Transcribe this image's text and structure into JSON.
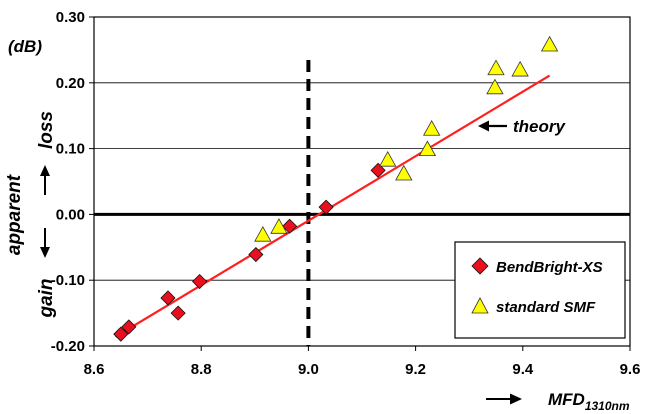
{
  "chart_data": {
    "type": "scatter",
    "unit_label": "(dB)",
    "xlabel": "MFD",
    "xlabel_subscript": "1310nm",
    "ylabel": {
      "center": "apparent",
      "upper": "loss",
      "lower": "gain"
    },
    "xlim": [
      8.6,
      9.6
    ],
    "ylim": [
      -0.2,
      0.3
    ],
    "x_ticks": [
      8.6,
      8.8,
      9.0,
      9.2,
      9.4,
      9.6
    ],
    "x_tick_labels": [
      "8.6",
      "8.8",
      "9.0",
      "9.2",
      "9.4",
      "9.6"
    ],
    "y_ticks": [
      -0.2,
      -0.1,
      0.0,
      0.1,
      0.2,
      0.3
    ],
    "y_tick_labels": [
      "-0.20",
      "-0.10",
      "0.00",
      "0.10",
      "0.20",
      "0.30"
    ],
    "grid": "horizontal",
    "legend_position": "bottom-right",
    "series": [
      {
        "name": "BendBright-XS",
        "marker": "diamond",
        "color": "#e8101e",
        "points": [
          {
            "x": 8.65,
            "y": -0.182
          },
          {
            "x": 8.665,
            "y": -0.171
          },
          {
            "x": 8.738,
            "y": -0.127
          },
          {
            "x": 8.757,
            "y": -0.15
          },
          {
            "x": 8.797,
            "y": -0.102
          },
          {
            "x": 8.902,
            "y": -0.061
          },
          {
            "x": 8.965,
            "y": -0.018
          },
          {
            "x": 9.033,
            "y": 0.011
          },
          {
            "x": 9.13,
            "y": 0.067
          }
        ]
      },
      {
        "name": "standard SMF",
        "marker": "triangle",
        "color": "#ffff00",
        "points": [
          {
            "x": 8.915,
            "y": -0.031
          },
          {
            "x": 8.945,
            "y": -0.019
          },
          {
            "x": 9.148,
            "y": 0.083
          },
          {
            "x": 9.178,
            "y": 0.062
          },
          {
            "x": 9.222,
            "y": 0.099
          },
          {
            "x": 9.23,
            "y": 0.13
          },
          {
            "x": 9.348,
            "y": 0.193
          },
          {
            "x": 9.35,
            "y": 0.222
          },
          {
            "x": 9.395,
            "y": 0.22
          },
          {
            "x": 9.45,
            "y": 0.258
          }
        ]
      }
    ],
    "theory_line": {
      "label": "theory",
      "color": "#ff2020",
      "start": {
        "x": 8.64,
        "y": -0.186
      },
      "end": {
        "x": 9.45,
        "y": 0.211
      }
    },
    "reference_line": {
      "x": 9.0,
      "style": "dashed"
    }
  }
}
